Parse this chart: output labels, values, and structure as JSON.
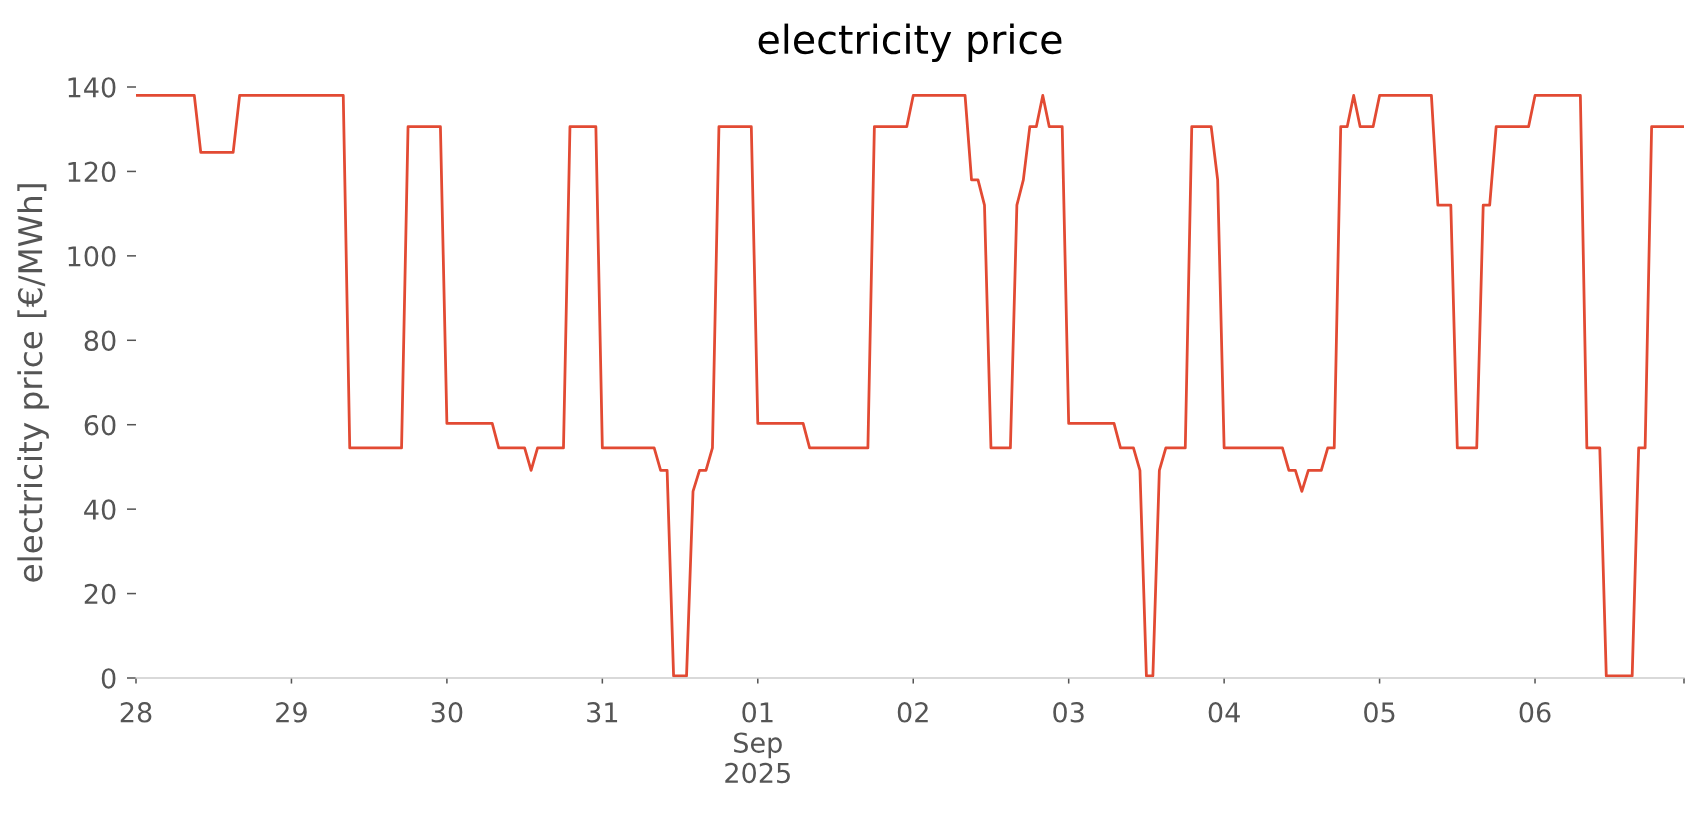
{
  "chart_data": {
    "type": "line",
    "title": "electricity price",
    "ylabel": "electricity price [€/MWh]",
    "x": [
      "2025-08-28T00:00",
      "2025-08-28T09:00",
      "2025-08-28T10:00",
      "2025-08-28T15:00",
      "2025-08-28T16:00",
      "2025-08-29T08:00",
      "2025-08-29T09:00",
      "2025-08-29T17:00",
      "2025-08-29T18:00",
      "2025-08-29T23:00",
      "2025-08-30T00:00",
      "2025-08-30T07:00",
      "2025-08-30T08:00",
      "2025-08-30T12:00",
      "2025-08-30T13:00",
      "2025-08-30T14:00",
      "2025-08-30T18:00",
      "2025-08-30T19:00",
      "2025-08-30T23:00",
      "2025-08-31T00:00",
      "2025-08-31T08:00",
      "2025-08-31T09:00",
      "2025-08-31T10:00",
      "2025-08-31T11:00",
      "2025-08-31T13:00",
      "2025-08-31T14:00",
      "2025-08-31T15:00",
      "2025-08-31T16:00",
      "2025-08-31T17:00",
      "2025-08-31T18:00",
      "2025-08-31T23:00",
      "2025-09-01T00:00",
      "2025-09-01T07:00",
      "2025-09-01T08:00",
      "2025-09-01T17:00",
      "2025-09-01T18:00",
      "2025-09-01T23:00",
      "2025-09-02T00:00",
      "2025-09-02T08:00",
      "2025-09-02T09:00",
      "2025-09-02T10:00",
      "2025-09-02T11:00",
      "2025-09-02T12:00",
      "2025-09-02T15:00",
      "2025-09-02T16:00",
      "2025-09-02T17:00",
      "2025-09-02T18:00",
      "2025-09-02T19:00",
      "2025-09-02T20:00",
      "2025-09-02T21:00",
      "2025-09-02T23:00",
      "2025-09-03T00:00",
      "2025-09-03T07:00",
      "2025-09-03T08:00",
      "2025-09-03T10:00",
      "2025-09-03T11:00",
      "2025-09-03T12:00",
      "2025-09-03T13:00",
      "2025-09-03T14:00",
      "2025-09-03T15:00",
      "2025-09-03T18:00",
      "2025-09-03T19:00",
      "2025-09-03T22:00",
      "2025-09-03T23:00",
      "2025-09-04T00:00",
      "2025-09-04T09:00",
      "2025-09-04T10:00",
      "2025-09-04T11:00",
      "2025-09-04T12:00",
      "2025-09-04T13:00",
      "2025-09-04T15:00",
      "2025-09-04T16:00",
      "2025-09-04T17:00",
      "2025-09-04T18:00",
      "2025-09-04T19:00",
      "2025-09-04T20:00",
      "2025-09-04T21:00",
      "2025-09-04T23:00",
      "2025-09-05T00:00",
      "2025-09-05T08:00",
      "2025-09-05T09:00",
      "2025-09-05T11:00",
      "2025-09-05T12:00",
      "2025-09-05T15:00",
      "2025-09-05T16:00",
      "2025-09-05T17:00",
      "2025-09-05T18:00",
      "2025-09-05T23:00",
      "2025-09-06T00:00",
      "2025-09-06T07:00",
      "2025-09-06T08:00",
      "2025-09-06T10:00",
      "2025-09-06T11:00",
      "2025-09-06T15:00",
      "2025-09-06T16:00",
      "2025-09-06T17:00",
      "2025-09-06T18:00",
      "2025-09-06T23:00"
    ],
    "series": [
      {
        "color": "#e24a33",
        "values": [
          138,
          138,
          124.5,
          124.5,
          138,
          138,
          54.5,
          54.5,
          130.6,
          130.6,
          60.3,
          60.3,
          54.5,
          54.5,
          49.2,
          54.5,
          54.5,
          130.6,
          130.6,
          54.5,
          54.5,
          49.2,
          49.2,
          0.5,
          0.5,
          44.2,
          49.2,
          49.2,
          54.5,
          130.6,
          130.6,
          60.3,
          60.3,
          54.5,
          54.5,
          130.6,
          130.6,
          138,
          138,
          118,
          118,
          112,
          54.5,
          54.5,
          112,
          118,
          130.6,
          130.6,
          138,
          130.6,
          130.6,
          60.3,
          60.3,
          54.5,
          54.5,
          49.2,
          0.5,
          0.5,
          49.2,
          54.5,
          54.5,
          130.6,
          130.6,
          118,
          54.5,
          54.5,
          49.2,
          49.2,
          44.2,
          49.2,
          49.2,
          54.5,
          54.5,
          130.6,
          130.6,
          138,
          130.6,
          130.6,
          138,
          138,
          112,
          112,
          54.5,
          54.5,
          112,
          112,
          130.6,
          130.6,
          138,
          138,
          54.5,
          54.5,
          0.5,
          0.5,
          54.5,
          54.5,
          130.6,
          130.6
        ]
      }
    ],
    "xlim": [
      "2025-08-28T00:00",
      "2025-09-06T23:00"
    ],
    "xticks": [
      {
        "value": "2025-08-28",
        "label": "28"
      },
      {
        "value": "2025-08-29",
        "label": "29"
      },
      {
        "value": "2025-08-30",
        "label": "30"
      },
      {
        "value": "2025-08-31",
        "label": "31"
      },
      {
        "value": "2025-09-01",
        "label": "01\nSep\n2025"
      },
      {
        "value": "2025-09-02",
        "label": "02"
      },
      {
        "value": "2025-09-03",
        "label": "03"
      },
      {
        "value": "2025-09-04",
        "label": "04"
      },
      {
        "value": "2025-09-05",
        "label": "05"
      },
      {
        "value": "2025-09-06",
        "label": "06"
      },
      {
        "value": "2025-09-06T23:00",
        "label": null
      }
    ],
    "ylim": [
      0,
      140
    ],
    "yticks": [
      0,
      20,
      40,
      60,
      80,
      100,
      120,
      140
    ]
  }
}
